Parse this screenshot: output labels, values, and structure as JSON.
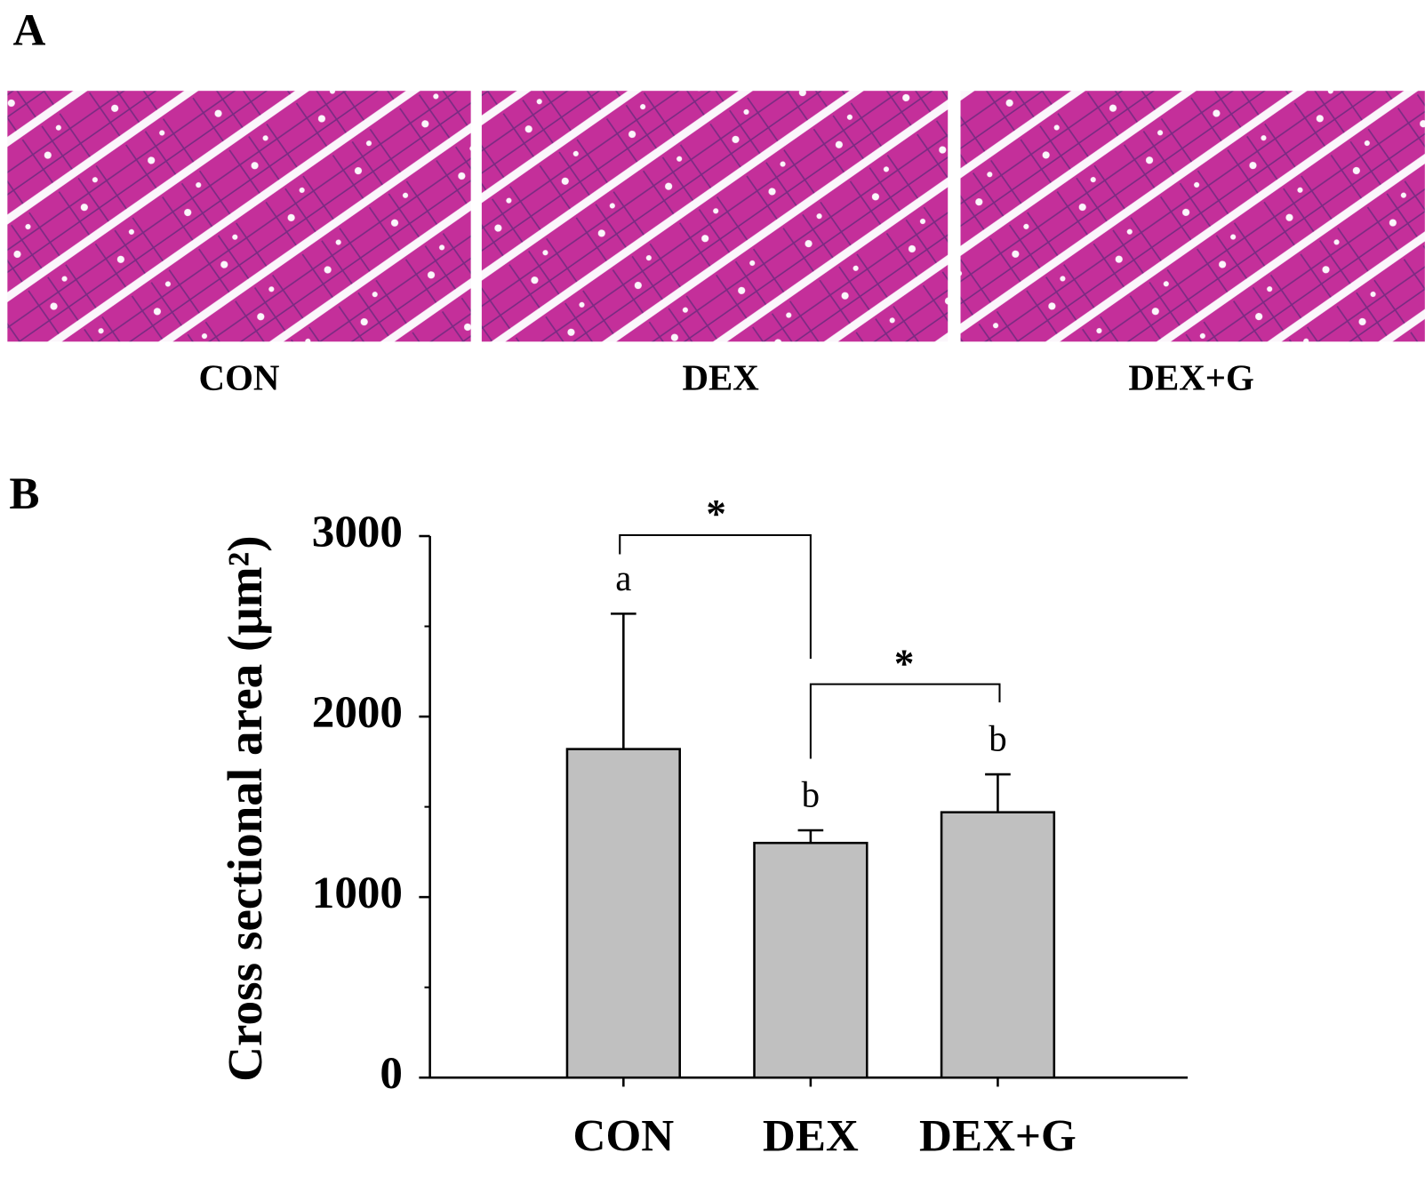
{
  "panels": [
    {
      "label": "A",
      "images": [
        "CON",
        "DEX",
        "DEX+G"
      ]
    },
    {
      "label": "B"
    }
  ],
  "chart_data": {
    "type": "bar",
    "ylabel": "Cross sectional area (μm²)",
    "categories": [
      "CON",
      "DEX",
      "DEX+G"
    ],
    "values": [
      1820,
      1300,
      1470
    ],
    "errors": [
      750,
      70,
      210
    ],
    "letters": [
      "a",
      "b",
      "b"
    ],
    "color": "#c0c0c0",
    "ylim": [
      0,
      3000
    ],
    "yticks": [
      0,
      1000,
      2000,
      3000
    ],
    "yminorticks": [
      500,
      1500,
      2500
    ],
    "significance": [
      {
        "groups": [
          "CON",
          "DEX"
        ],
        "label": "*"
      },
      {
        "groups": [
          "DEX",
          "DEX+G"
        ],
        "label": "*"
      }
    ]
  }
}
